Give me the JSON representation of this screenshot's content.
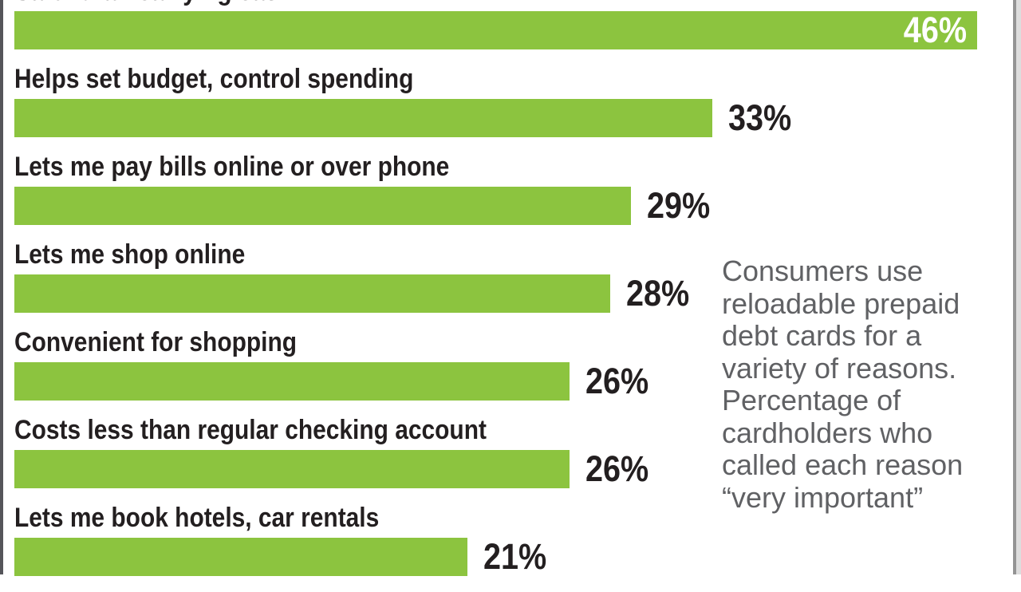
{
  "chart_data": {
    "type": "bar",
    "orientation": "horizontal",
    "title": "",
    "xlabel": "",
    "ylabel": "",
    "grid": false,
    "legend": false,
    "xlim": [
      0,
      46
    ],
    "unit": "%",
    "categories": [
      "Safer than carrying cash",
      "Helps set budget, control spending",
      "Lets me pay bills online or over phone",
      "Lets me shop online",
      "Convenient for shopping",
      "Costs less than regular checking account",
      "Lets me book hotels, car rentals"
    ],
    "values": [
      46,
      33,
      29,
      28,
      26,
      26,
      21
    ],
    "value_labels": [
      "46%",
      "33%",
      "29%",
      "28%",
      "26%",
      "26%",
      "21%"
    ],
    "value_label_inside": [
      true,
      false,
      false,
      false,
      false,
      false,
      false
    ],
    "annotation": "Consumers use\nreloadable prepaid\ndebt cards for a\nvariety of reasons.\nPercentage of\ncardholders who\ncalled each reason\n“very important”"
  },
  "colors": {
    "bar": "#8cc43f",
    "category_label": "#231f20",
    "value_label_outside": "#231f20",
    "value_label_inside": "#ffffff",
    "annotation_text": "#606164",
    "left_border": "#55555a",
    "right_border": "#949494",
    "background": "#ffffff"
  },
  "notes": {
    "first_row_clipped": "Top category label is cut off by the top edge of the screenshot; last bar is cut off by the bottom edge."
  }
}
